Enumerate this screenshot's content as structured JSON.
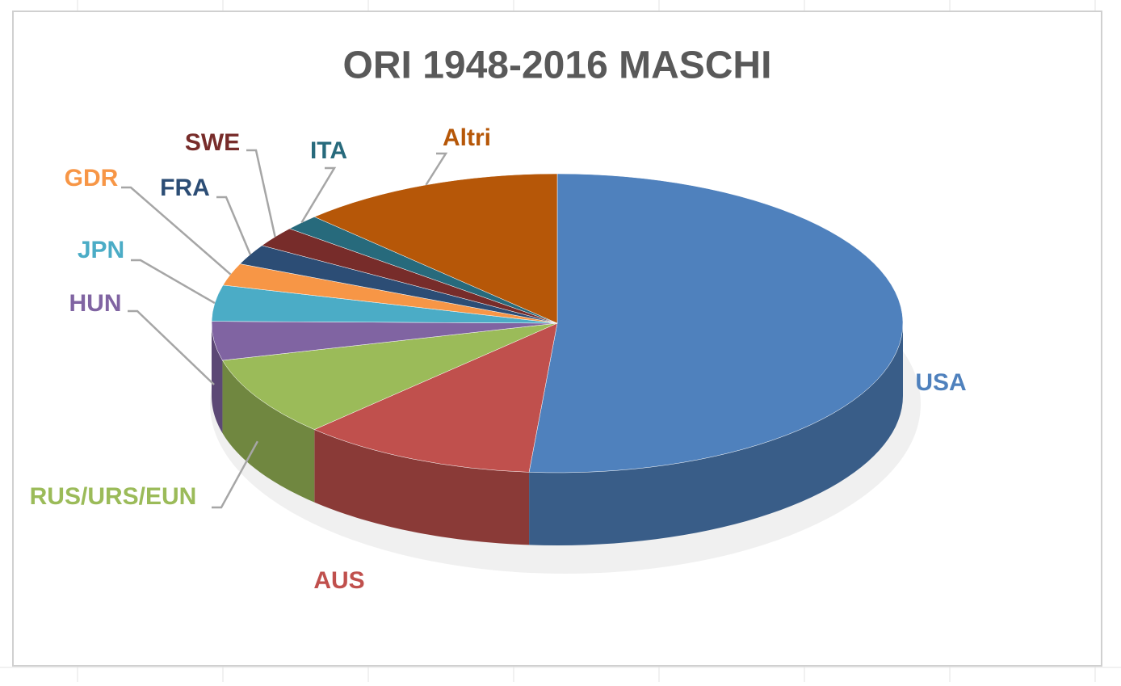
{
  "chart_data": {
    "type": "pie",
    "title": "ORI 1948-2016 MASCHI",
    "categories": [
      "USA",
      "AUS",
      "RUS/URS/EUN",
      "HUN",
      "JPN",
      "GDR",
      "FRA",
      "SWE",
      "ITA",
      "Altri"
    ],
    "values": [
      51.3,
      11.1,
      8.6,
      4.2,
      3.9,
      2.4,
      2.2,
      2.2,
      1.7,
      12.4
    ],
    "colors": [
      "#4f81bd",
      "#c0504d",
      "#9bbb59",
      "#8064a2",
      "#4bacc6",
      "#f79646",
      "#2c4d75",
      "#772c2a",
      "#276a7c",
      "#b65708"
    ]
  }
}
